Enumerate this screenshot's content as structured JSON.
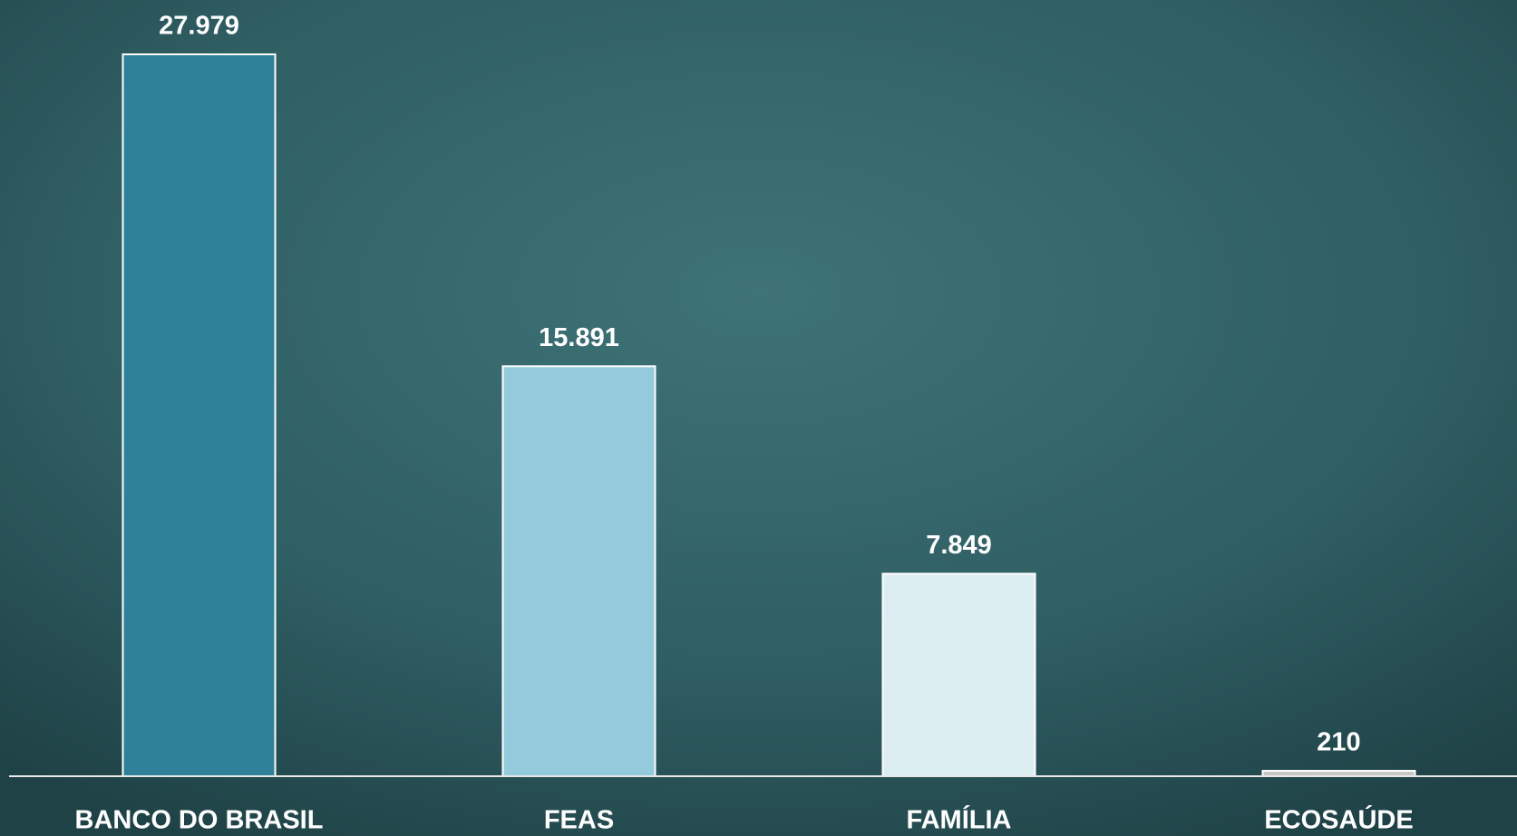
{
  "chart_data": {
    "type": "bar",
    "categories": [
      "BANCO DO BRASIL",
      "FEAS",
      "FAMÍLIA",
      "ECOSAÚDE"
    ],
    "values": [
      27979,
      15891,
      7849,
      210
    ],
    "value_labels": [
      "27.979",
      "15.891",
      "7.849",
      "210"
    ],
    "colors": [
      "#2e8199",
      "#94cbdc",
      "#ddeef3",
      "#c8c8c8"
    ]
  }
}
